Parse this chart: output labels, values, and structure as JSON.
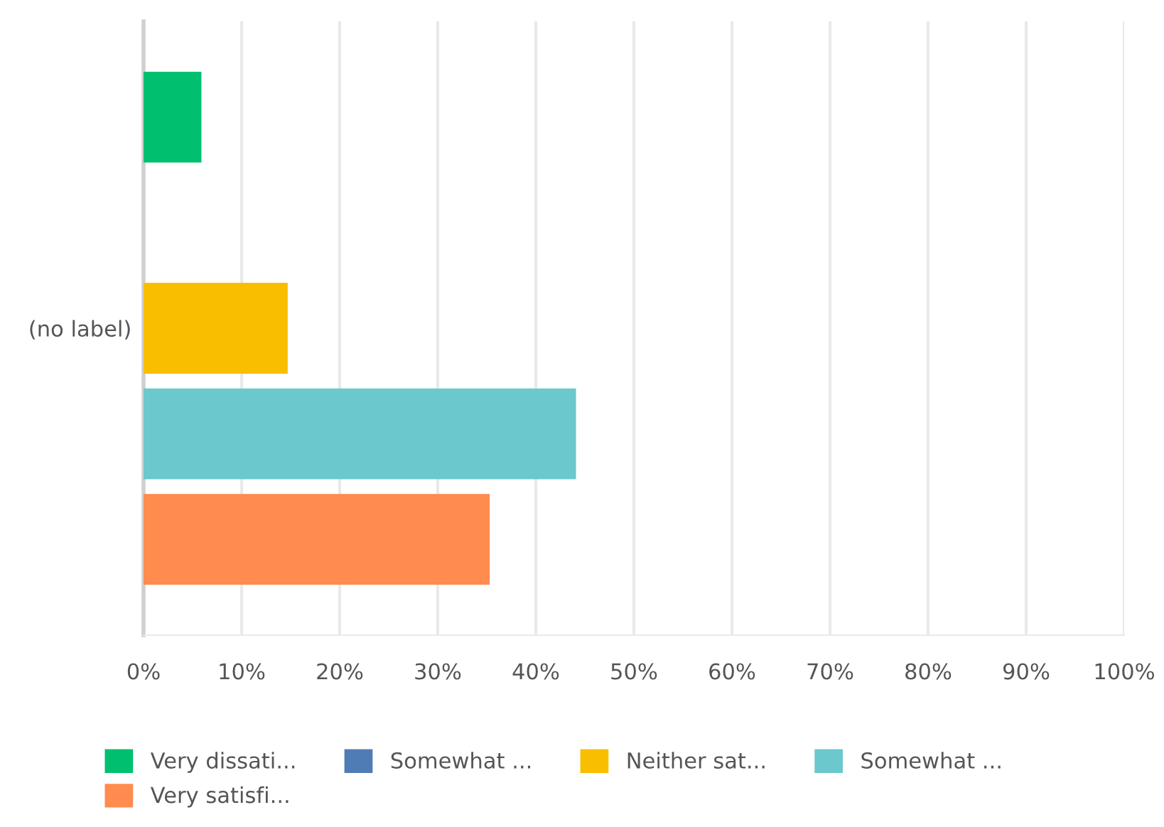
{
  "chart_data": {
    "type": "bar",
    "orientation": "horizontal",
    "categories": [
      "(no label)"
    ],
    "series": [
      {
        "name": "Very dissati...",
        "color": "#00bf6f",
        "values": [
          5.9
        ]
      },
      {
        "name": "Somewhat ...",
        "color": "#507cb6",
        "values": [
          0
        ]
      },
      {
        "name": "Neither sat...",
        "color": "#f9be00",
        "values": [
          14.7
        ]
      },
      {
        "name": "Somewhat ...",
        "color": "#6bc8cd",
        "values": [
          44.1
        ]
      },
      {
        "name": "Very satisfi...",
        "color": "#ff8b4f",
        "values": [
          35.3
        ]
      }
    ],
    "xlim": [
      0,
      100
    ],
    "xticks": [
      {
        "value": 0,
        "label": "0%"
      },
      {
        "value": 10,
        "label": "10%"
      },
      {
        "value": 20,
        "label": "20%"
      },
      {
        "value": 30,
        "label": "30%"
      },
      {
        "value": 40,
        "label": "40%"
      },
      {
        "value": 50,
        "label": "50%"
      },
      {
        "value": 60,
        "label": "60%"
      },
      {
        "value": 70,
        "label": "70%"
      },
      {
        "value": 80,
        "label": "80%"
      },
      {
        "value": 90,
        "label": "90%"
      },
      {
        "value": 100,
        "label": "100%"
      }
    ],
    "grid": "x",
    "legend": "bottom"
  }
}
